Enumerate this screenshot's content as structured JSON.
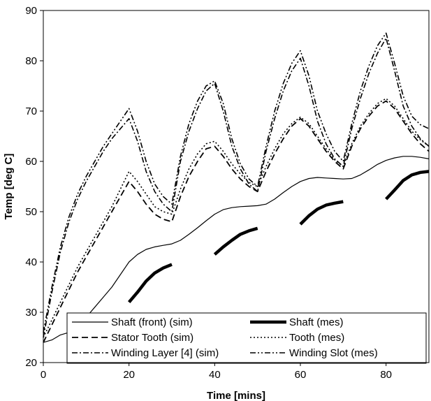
{
  "chart_data": {
    "type": "line",
    "title": "",
    "xlabel": "Time [mins]",
    "ylabel": "Temp [deg C]",
    "xlim": [
      0,
      90
    ],
    "ylim": [
      20,
      90
    ],
    "xticks": [
      0,
      20,
      40,
      60,
      80
    ],
    "yticks": [
      20,
      30,
      40,
      50,
      60,
      70,
      80,
      90
    ],
    "grid": false,
    "legend_position": "bottom",
    "series": [
      {
        "name": "Shaft (front) (sim)",
        "style": "solid-thin",
        "color": "#000000",
        "x": [
          0,
          2,
          4,
          6,
          8,
          10,
          12,
          14,
          16,
          18,
          20,
          22,
          24,
          26,
          28,
          30,
          32,
          34,
          36,
          38,
          40,
          42,
          44,
          46,
          48,
          50,
          52,
          54,
          56,
          58,
          60,
          62,
          64,
          66,
          68,
          70,
          72,
          74,
          76,
          78,
          80,
          82,
          84,
          86,
          88,
          90
        ],
        "y": [
          24,
          24.5,
          25.5,
          26,
          27,
          29,
          31,
          33,
          35,
          37.5,
          40,
          41.5,
          42.5,
          43,
          43.3,
          43.6,
          44.3,
          45.5,
          46.8,
          48.2,
          49.5,
          50.4,
          50.8,
          51,
          51.1,
          51.2,
          51.5,
          52.5,
          53.8,
          55,
          56,
          56.6,
          56.8,
          56.7,
          56.6,
          56.5,
          56.6,
          57.3,
          58.3,
          59.4,
          60.2,
          60.7,
          61,
          61,
          60.8,
          60.5
        ]
      },
      {
        "name": "Shaft (mes)",
        "style": "solid-thick",
        "color": "#000000",
        "x": [
          20,
          22,
          24,
          26,
          28,
          30,
          null,
          40,
          42,
          44,
          46,
          48,
          50,
          null,
          60,
          62,
          64,
          66,
          68,
          70,
          null,
          80,
          82,
          84,
          86,
          88,
          90
        ],
        "y": [
          32,
          34,
          36.2,
          37.8,
          38.8,
          39.5,
          null,
          41.5,
          43,
          44.3,
          45.5,
          46.2,
          46.7,
          null,
          47.5,
          49.2,
          50.5,
          51.3,
          51.7,
          52,
          null,
          52.5,
          54.3,
          56.2,
          57.3,
          57.8,
          58
        ]
      },
      {
        "name": "Stator Tooth (sim)",
        "style": "long-dash",
        "color": "#000000",
        "x": [
          0,
          2,
          4,
          6,
          8,
          10,
          12,
          14,
          16,
          18,
          20,
          22,
          24,
          26,
          28,
          30,
          32,
          34,
          36,
          38,
          40,
          42,
          44,
          46,
          48,
          50,
          52,
          54,
          56,
          58,
          60,
          62,
          64,
          66,
          68,
          70,
          72,
          74,
          76,
          78,
          80,
          82,
          84,
          86,
          88,
          90
        ],
        "y": [
          24,
          27.5,
          31,
          34.5,
          38,
          41,
          44,
          47,
          50,
          53,
          56,
          54,
          51.5,
          49.5,
          48.5,
          48,
          53,
          57,
          60,
          62.5,
          63,
          61,
          58.5,
          56.5,
          55,
          54,
          58,
          61.5,
          64.5,
          67,
          68.5,
          67,
          64.5,
          62,
          60,
          58.5,
          63,
          66.5,
          69,
          71,
          72,
          70.5,
          68,
          65.5,
          63.5,
          62
        ]
      },
      {
        "name": "Tooth (mes)",
        "style": "dotted",
        "color": "#000000",
        "x": [
          0,
          2,
          4,
          6,
          8,
          10,
          12,
          14,
          16,
          18,
          20,
          22,
          24,
          26,
          28,
          30,
          32,
          34,
          36,
          38,
          40,
          42,
          44,
          46,
          48,
          50,
          52,
          54,
          56,
          58,
          60,
          62,
          64,
          66,
          68,
          70,
          72,
          74,
          76,
          78,
          80,
          82,
          84,
          86,
          88,
          90
        ],
        "y": [
          25,
          28.5,
          32,
          35.5,
          39,
          42,
          45,
          48,
          51,
          54.5,
          58,
          56,
          53.5,
          51,
          50,
          49.5,
          54.5,
          58.5,
          61.5,
          63.5,
          64,
          62,
          59.5,
          57.5,
          55.8,
          55,
          59,
          62.5,
          65.5,
          67.5,
          68.8,
          67.5,
          65,
          62.5,
          60.3,
          59,
          63.5,
          67,
          69.5,
          71.5,
          72.5,
          71,
          68.5,
          66,
          64.3,
          63
        ]
      },
      {
        "name": "Winding Layer [4] (sim)",
        "style": "dash-dot",
        "color": "#000000",
        "x": [
          0,
          2,
          4,
          6,
          8,
          10,
          12,
          14,
          16,
          18,
          20,
          22,
          24,
          26,
          28,
          30,
          32,
          34,
          36,
          38,
          40,
          42,
          44,
          46,
          48,
          50,
          52,
          54,
          56,
          58,
          60,
          62,
          64,
          66,
          68,
          70,
          72,
          74,
          76,
          78,
          80,
          82,
          84,
          86,
          88,
          90
        ],
        "y": [
          25,
          34,
          42,
          48,
          52.5,
          56,
          59,
          62,
          64.5,
          66.5,
          68.5,
          64,
          58,
          54,
          51.5,
          50,
          60,
          66,
          70.5,
          74,
          75.5,
          70,
          63,
          58.5,
          55.5,
          54,
          62,
          68.5,
          74,
          78,
          80.5,
          75,
          68,
          63.5,
          60.5,
          59,
          66.5,
          72.5,
          77.5,
          81.5,
          84.5,
          78,
          71,
          67,
          64.5,
          63
        ]
      },
      {
        "name": "Winding Slot (mes)",
        "style": "dash-dot-dot",
        "color": "#000000",
        "x": [
          0,
          2,
          4,
          6,
          8,
          10,
          12,
          14,
          16,
          18,
          20,
          22,
          24,
          26,
          28,
          30,
          32,
          34,
          36,
          38,
          40,
          42,
          44,
          46,
          48,
          50,
          52,
          54,
          56,
          58,
          60,
          62,
          64,
          66,
          68,
          70,
          72,
          74,
          76,
          78,
          80,
          82,
          84,
          86,
          88,
          90
        ],
        "y": [
          26,
          35,
          43,
          49,
          53.5,
          57,
          60,
          63,
          65.5,
          68,
          70.5,
          66,
          60,
          55.5,
          53,
          51.5,
          61,
          67.5,
          72,
          75,
          76,
          71.5,
          64.5,
          59.5,
          56.5,
          55,
          63,
          70,
          75.5,
          79.5,
          82,
          77,
          70,
          65.5,
          62,
          60,
          67.5,
          74,
          79,
          83,
          85.5,
          79.5,
          73,
          69,
          67.3,
          66.5
        ]
      }
    ]
  }
}
